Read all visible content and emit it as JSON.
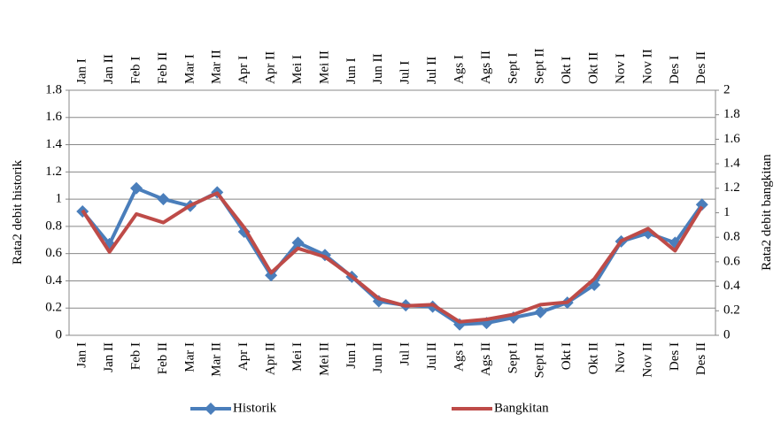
{
  "chart_data": {
    "type": "line",
    "categories": [
      "Jan I",
      "Jan II",
      "Feb I",
      "Feb II",
      "Mar I",
      "Mar II",
      "Apr I",
      "Apr II",
      "Mei I",
      "Mei II",
      "Jun I",
      "Jun II",
      "Jul I",
      "Jul II",
      "Ags I",
      "Ags II",
      "Sept I",
      "Sept II",
      "Okt I",
      "Okt II",
      "Nov I",
      "Nov II",
      "Des I",
      "Des II"
    ],
    "series": [
      {
        "name": "Historik",
        "color": "#4a7ebb",
        "values": [
          0.91,
          0.67,
          1.08,
          1.0,
          0.95,
          1.05,
          0.76,
          0.44,
          0.68,
          0.59,
          0.43,
          0.25,
          0.22,
          0.21,
          0.08,
          0.09,
          0.13,
          0.17,
          0.24,
          0.37,
          0.69,
          0.75,
          0.68,
          0.96
        ]
      },
      {
        "name": "Bangkitan",
        "color": "#be4b48",
        "axis": "y2",
        "values": [
          1.02,
          0.68,
          0.99,
          0.92,
          1.06,
          1.16,
          0.88,
          0.51,
          0.71,
          0.64,
          0.48,
          0.3,
          0.24,
          0.25,
          0.11,
          0.13,
          0.17,
          0.25,
          0.27,
          0.46,
          0.77,
          0.87,
          0.69,
          1.05
        ]
      }
    ],
    "ylabel": "Rata2 debit historik",
    "y2label": "Rata2 debit bangkitan",
    "ylim": [
      0,
      1.8
    ],
    "yticks": [
      0,
      0.2,
      0.4,
      0.6,
      0.8,
      1,
      1.2,
      1.4,
      1.6,
      1.8
    ],
    "y2lim": [
      0,
      2
    ],
    "y2ticks": [
      0,
      0.2,
      0.4,
      0.6,
      0.8,
      1,
      1.2,
      1.4,
      1.6,
      1.8,
      2
    ],
    "grid": true
  }
}
